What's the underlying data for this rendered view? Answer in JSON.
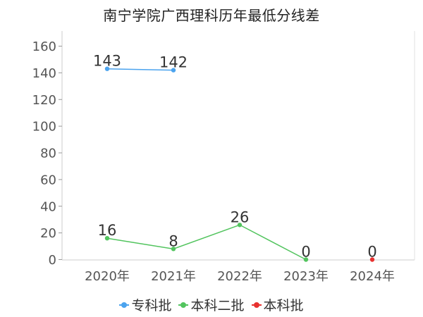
{
  "chart_data": {
    "type": "line",
    "title": "南宁学院广西理科历年最低分线差",
    "xlabel": "",
    "ylabel": "",
    "categories": [
      "2020年",
      "2021年",
      "2022年",
      "2023年",
      "2024年"
    ],
    "ylim": [
      0,
      170
    ],
    "yticks": [
      0,
      20,
      40,
      60,
      80,
      100,
      120,
      140,
      160
    ],
    "grid": false,
    "legend_position": "bottom",
    "series": [
      {
        "name": "专科批",
        "color": "#4ba3ee",
        "values": [
          143,
          142,
          null,
          null,
          null
        ]
      },
      {
        "name": "本科二批",
        "color": "#52c45e",
        "values": [
          16,
          8,
          26,
          0,
          null
        ]
      },
      {
        "name": "本科批",
        "color": "#e8312f",
        "values": [
          null,
          null,
          null,
          null,
          0
        ]
      }
    ]
  }
}
